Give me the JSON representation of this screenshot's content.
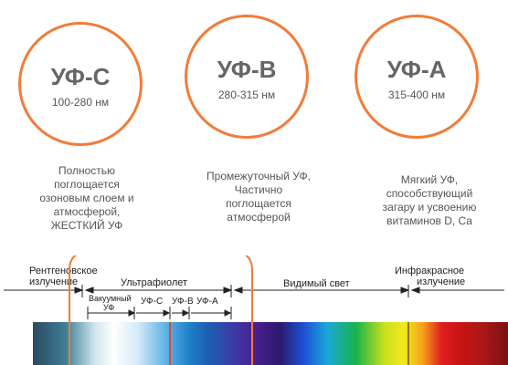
{
  "uv_types": [
    {
      "name": "УФ-С",
      "range": "100-280 нм",
      "description": [
        "Полностью",
        "поглощается",
        "озоновым слоем и",
        "атмосферой,",
        "ЖЕСТКИЙ УФ"
      ]
    },
    {
      "name": "УФ-В",
      "range": "280-315 нм",
      "description": [
        "Промежуточный УФ,",
        "Частично",
        "поглощается",
        "атмосферой"
      ]
    },
    {
      "name": "УФ-А",
      "range": "315-400 нм",
      "description": [
        "Мягкий УФ,",
        "способствующий",
        "загару и усвоению",
        "витаминов D, Ca"
      ]
    }
  ],
  "spectrum": {
    "xray_label": [
      "Рентгеновское",
      "излучение"
    ],
    "uv_label": "Ультрафиолет",
    "visible_label": "Видимый свет",
    "ir_label": [
      "Инфракрасное",
      "излучение"
    ],
    "vacuum_label": [
      "Вакуумный",
      "УФ"
    ],
    "uvc_label": "УФ-С",
    "uvb_label": "УФ-В",
    "uva_label": "УФ-А"
  },
  "colors": {
    "accent": "#f07d3a",
    "text": "#555555"
  }
}
